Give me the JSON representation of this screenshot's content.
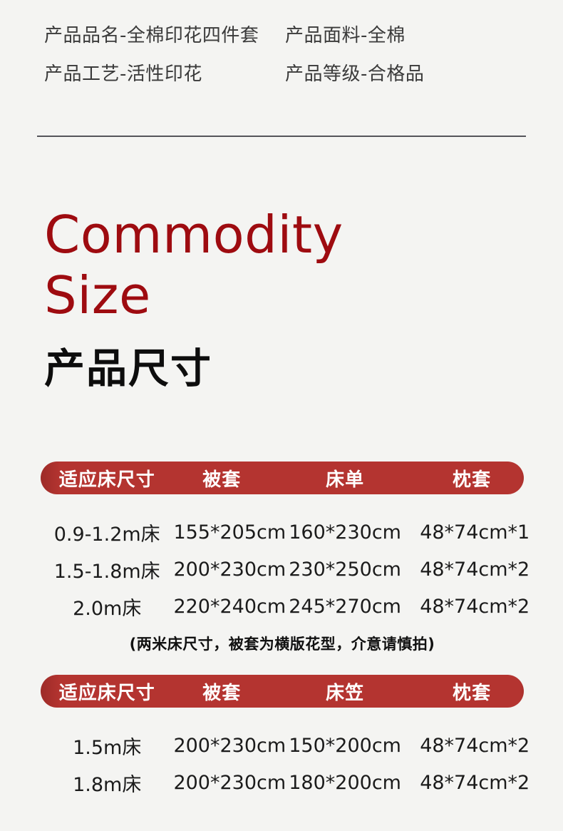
{
  "product_attributes": {
    "items": [
      {
        "label": "产品品名-全棉印花四件套"
      },
      {
        "label": "产品面料-全棉"
      },
      {
        "label": "产品工艺-活性印花"
      },
      {
        "label": "产品等级-合格品"
      }
    ]
  },
  "title": {
    "english_line1": "Commodity",
    "english_line2": "Size",
    "chinese": "产品尺寸"
  },
  "colors": {
    "background": "#f4f4f2",
    "title_red": "#9e0b10",
    "table_header_red": "#b43430"
  },
  "tables": [
    {
      "headers": [
        "适应床尺寸",
        "被套",
        "床单",
        "枕套"
      ],
      "rows": [
        [
          "0.9-1.2m床",
          "155*205cm",
          "160*230cm",
          "48*74cm*1"
        ],
        [
          "1.5-1.8m床",
          "200*230cm",
          "230*250cm",
          "48*74cm*2"
        ],
        [
          "2.0m床",
          "220*240cm",
          "245*270cm",
          "48*74cm*2"
        ]
      ],
      "note": "(两米床尺寸，被套为横版花型，介意请慎拍)"
    },
    {
      "headers": [
        "适应床尺寸",
        "被套",
        "床笠",
        "枕套"
      ],
      "rows": [
        [
          "1.5m床",
          "200*230cm",
          "150*200cm",
          "48*74cm*2"
        ],
        [
          "1.8m床",
          "200*230cm",
          "180*200cm",
          "48*74cm*2"
        ]
      ]
    }
  ]
}
